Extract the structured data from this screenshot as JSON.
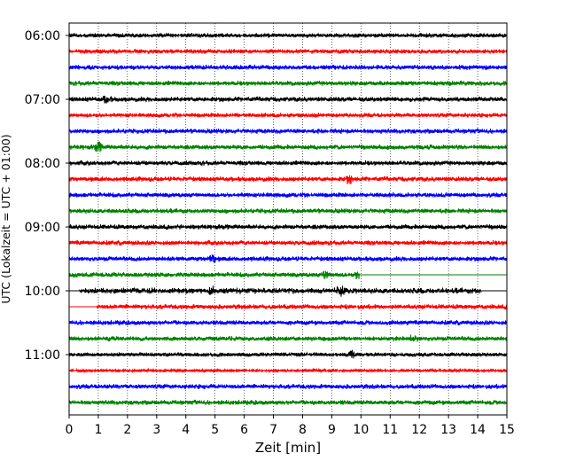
{
  "chart_data": {
    "type": "line",
    "title": "",
    "xlabel": "Zeit  [min]",
    "ylabel": "UTC (Lokalzeit = UTC + 01:00)",
    "xlim": [
      0,
      15
    ],
    "x_ticks": [
      "0",
      "1",
      "2",
      "3",
      "4",
      "5",
      "6",
      "7",
      "8",
      "9",
      "10",
      "11",
      "12",
      "13",
      "14",
      "15"
    ],
    "y_tick_labels": [
      "06:00",
      "07:00",
      "08:00",
      "09:00",
      "10:00",
      "11:00"
    ],
    "grid": "vertical dotted",
    "row_interval_minutes": 15,
    "row_colors": [
      "#000000",
      "#ff0000",
      "#0000ff",
      "#008000"
    ],
    "rows": [
      {
        "start": "06:00",
        "color": "#000000",
        "data_from": 0,
        "data_to": 15,
        "amp": 0.9
      },
      {
        "start": "06:15",
        "color": "#ff0000",
        "data_from": 0,
        "data_to": 15,
        "amp": 0.9
      },
      {
        "start": "06:30",
        "color": "#0000ff",
        "data_from": 0,
        "data_to": 15,
        "amp": 1.0
      },
      {
        "start": "06:45",
        "color": "#008000",
        "data_from": 0,
        "data_to": 15,
        "amp": 1.0
      },
      {
        "start": "07:00",
        "color": "#000000",
        "data_from": 0,
        "data_to": 15,
        "amp": 1.0,
        "events": [
          1.3
        ]
      },
      {
        "start": "07:15",
        "color": "#ff0000",
        "data_from": 0,
        "data_to": 15,
        "amp": 0.9
      },
      {
        "start": "07:30",
        "color": "#0000ff",
        "data_from": 0,
        "data_to": 15,
        "amp": 1.0
      },
      {
        "start": "07:45",
        "color": "#008000",
        "data_from": 0,
        "data_to": 15,
        "amp": 1.0,
        "events": [
          1.0
        ]
      },
      {
        "start": "08:00",
        "color": "#000000",
        "data_from": 0,
        "data_to": 15,
        "amp": 1.0
      },
      {
        "start": "08:15",
        "color": "#ff0000",
        "data_from": 0,
        "data_to": 15,
        "amp": 1.0,
        "events": [
          9.6
        ]
      },
      {
        "start": "08:30",
        "color": "#0000ff",
        "data_from": 0,
        "data_to": 15,
        "amp": 1.0
      },
      {
        "start": "08:45",
        "color": "#008000",
        "data_from": 0,
        "data_to": 15,
        "amp": 1.0
      },
      {
        "start": "09:00",
        "color": "#000000",
        "data_from": 0,
        "data_to": 15,
        "amp": 1.0
      },
      {
        "start": "09:15",
        "color": "#ff0000",
        "data_from": 0,
        "data_to": 15,
        "amp": 1.0
      },
      {
        "start": "09:30",
        "color": "#0000ff",
        "data_from": 0,
        "data_to": 15,
        "amp": 1.0,
        "events": [
          4.9
        ]
      },
      {
        "start": "09:45",
        "color": "#008000",
        "data_from": 0,
        "data_to": 9.95,
        "amp": 1.0,
        "events": [
          8.8,
          9.9
        ]
      },
      {
        "start": "10:00",
        "color": "#000000",
        "data_from": 0.35,
        "data_to": 14.15,
        "amp": 1.2,
        "events": [
          4.9,
          9.3
        ]
      },
      {
        "start": "10:15",
        "color": "#ff0000",
        "data_from": 0.95,
        "data_to": 15,
        "amp": 1.0
      },
      {
        "start": "10:30",
        "color": "#0000ff",
        "data_from": 0,
        "data_to": 15,
        "amp": 1.0
      },
      {
        "start": "10:45",
        "color": "#008000",
        "data_from": 0,
        "data_to": 15,
        "amp": 1.0,
        "events": [
          11.8
        ]
      },
      {
        "start": "11:00",
        "color": "#000000",
        "data_from": 0,
        "data_to": 15,
        "amp": 0.8,
        "events": [
          9.7
        ]
      },
      {
        "start": "11:15",
        "color": "#ff0000",
        "data_from": 0,
        "data_to": 15,
        "amp": 0.6
      },
      {
        "start": "11:30",
        "color": "#0000ff",
        "data_from": 0,
        "data_to": 15,
        "amp": 1.0
      },
      {
        "start": "11:45",
        "color": "#008000",
        "data_from": 0,
        "data_to": 15,
        "amp": 1.0
      }
    ]
  }
}
